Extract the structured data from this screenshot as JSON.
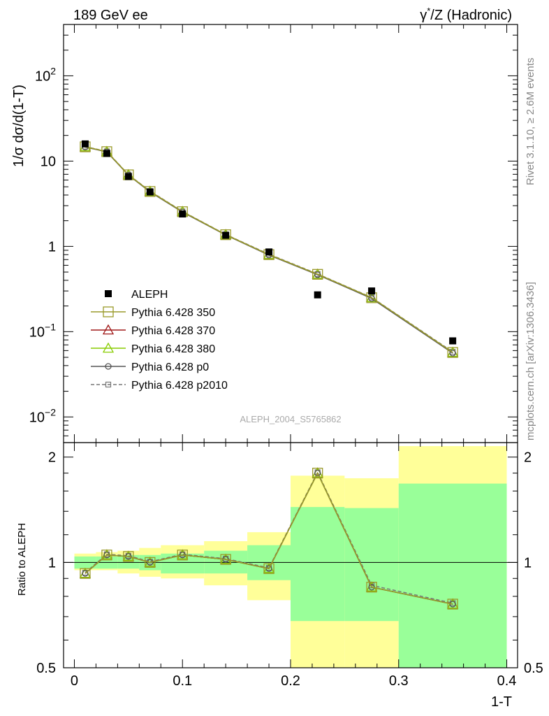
{
  "header": {
    "left_title": "189 GeV ee",
    "right_title_prefix": "γ",
    "right_title_sup": "*",
    "right_title_rest": "/Z (Hadronic)"
  },
  "side_labels": {
    "rivet": "Rivet 3.1.10, ≥ 2.6M events",
    "mcplots": "mcplots.cern.ch [arXiv:1306.3436]"
  },
  "watermark": "ALEPH_2004_S5765862",
  "colors": {
    "data": "#000000",
    "p350": "#9a9a2a",
    "p370": "#a01818",
    "p380": "#88cc00",
    "p0": "#555555",
    "p2010": "#777777",
    "band_outer": "#ffff99",
    "band_inner": "#99ff99"
  },
  "chart_data": [
    {
      "type": "scatter",
      "panel": "main",
      "xlabel": "1-T",
      "ylabel": "1/σ  dσ/d(1-T)",
      "xlim": [
        -0.01,
        0.41
      ],
      "ylim": [
        0.005,
        400
      ],
      "yscale": "log",
      "yticks": [
        {
          "value": 100,
          "base": "10",
          "exp": "2"
        },
        {
          "value": 10,
          "base": "10",
          "exp": ""
        },
        {
          "value": 1,
          "base": "1",
          "exp": ""
        },
        {
          "value": 0.1,
          "base": "10",
          "exp": "−1"
        },
        {
          "value": 0.01,
          "base": "10",
          "exp": "−2"
        }
      ],
      "legend": {
        "placement": "lower-left",
        "entries": [
          {
            "key": "data",
            "label": "ALEPH"
          },
          {
            "key": "p350",
            "label": "Pythia 6.428 350"
          },
          {
            "key": "p370",
            "label": "Pythia 6.428 370"
          },
          {
            "key": "p380",
            "label": "Pythia 6.428 380"
          },
          {
            "key": "p0",
            "label": "Pythia 6.428 p0"
          },
          {
            "key": "p2010",
            "label": "Pythia 6.428 p2010"
          }
        ]
      },
      "x": [
        0.01,
        0.03,
        0.05,
        0.07,
        0.1,
        0.14,
        0.18,
        0.225,
        0.275,
        0.35
      ],
      "data": [
        15.9,
        12.3,
        6.6,
        4.35,
        2.4,
        1.35,
        0.86,
        0.27,
        0.3,
        0.078
      ],
      "series": [
        {
          "key": "p350",
          "values": [
            14.7,
            12.9,
            6.9,
            4.4,
            2.55,
            1.37,
            0.8,
            0.47,
            0.25,
            0.057
          ]
        },
        {
          "key": "p370",
          "values": [
            14.7,
            12.9,
            6.9,
            4.4,
            2.55,
            1.37,
            0.8,
            0.47,
            0.25,
            0.057
          ]
        },
        {
          "key": "p380",
          "values": [
            14.7,
            12.9,
            6.9,
            4.4,
            2.55,
            1.37,
            0.8,
            0.47,
            0.25,
            0.057
          ]
        },
        {
          "key": "p0",
          "values": [
            14.6,
            12.8,
            6.85,
            4.35,
            2.52,
            1.36,
            0.79,
            0.465,
            0.245,
            0.056
          ]
        },
        {
          "key": "p2010",
          "values": [
            14.8,
            13.0,
            6.95,
            4.45,
            2.57,
            1.38,
            0.81,
            0.475,
            0.252,
            0.058
          ]
        }
      ]
    },
    {
      "type": "line",
      "panel": "ratio",
      "xlabel": "1-T",
      "ylabel": "Ratio to ALEPH",
      "xlim": [
        -0.01,
        0.41
      ],
      "ylim": [
        0.5,
        2.2
      ],
      "xticks": [
        {
          "value": 0,
          "label": "0"
        },
        {
          "value": 0.1,
          "label": "0.1"
        },
        {
          "value": 0.2,
          "label": "0.2"
        },
        {
          "value": 0.3,
          "label": "0.3"
        },
        {
          "value": 0.4,
          "label": "0.4"
        }
      ],
      "yticks": [
        {
          "value": 0.5,
          "label": "0.5"
        },
        {
          "value": 1,
          "label": "1"
        },
        {
          "value": 2,
          "label": "2"
        }
      ],
      "bins": [
        [
          0.0,
          0.02
        ],
        [
          0.02,
          0.04
        ],
        [
          0.04,
          0.06
        ],
        [
          0.06,
          0.08
        ],
        [
          0.08,
          0.12
        ],
        [
          0.12,
          0.16
        ],
        [
          0.16,
          0.2
        ],
        [
          0.2,
          0.25
        ],
        [
          0.25,
          0.3
        ],
        [
          0.3,
          0.4
        ]
      ],
      "band_inner": [
        [
          0.96,
          1.04
        ],
        [
          0.96,
          1.04
        ],
        [
          0.96,
          1.05
        ],
        [
          0.95,
          1.05
        ],
        [
          0.93,
          1.06
        ],
        [
          0.93,
          1.08
        ],
        [
          0.89,
          1.12
        ],
        [
          0.68,
          1.44
        ],
        [
          0.68,
          1.43
        ],
        [
          0.41,
          1.68
        ]
      ],
      "band_outer": [
        [
          0.95,
          1.06
        ],
        [
          0.95,
          1.07
        ],
        [
          0.93,
          1.08
        ],
        [
          0.91,
          1.1
        ],
        [
          0.9,
          1.12
        ],
        [
          0.86,
          1.15
        ],
        [
          0.78,
          1.22
        ],
        [
          0.4,
          1.77
        ],
        [
          0.42,
          1.74
        ],
        [
          0.4,
          2.15
        ]
      ],
      "x": [
        0.01,
        0.03,
        0.05,
        0.07,
        0.1,
        0.14,
        0.18,
        0.225,
        0.275,
        0.35
      ],
      "series": [
        {
          "key": "p350",
          "values": [
            0.93,
            1.05,
            1.04,
            1.0,
            1.05,
            1.02,
            0.96,
            1.8,
            0.85,
            0.76
          ]
        },
        {
          "key": "p370",
          "values": [
            0.93,
            1.05,
            1.04,
            1.0,
            1.05,
            1.02,
            0.96,
            1.8,
            0.85,
            0.76
          ]
        },
        {
          "key": "p380",
          "values": [
            0.93,
            1.05,
            1.04,
            1.0,
            1.05,
            1.02,
            0.96,
            1.8,
            0.85,
            0.76
          ]
        },
        {
          "key": "p0",
          "values": [
            0.93,
            1.05,
            1.04,
            1.0,
            1.05,
            1.02,
            0.96,
            1.8,
            0.85,
            0.76
          ]
        },
        {
          "key": "p2010",
          "values": [
            0.935,
            1.055,
            1.045,
            1.005,
            1.055,
            1.025,
            0.965,
            1.81,
            0.86,
            0.765
          ]
        }
      ]
    }
  ]
}
